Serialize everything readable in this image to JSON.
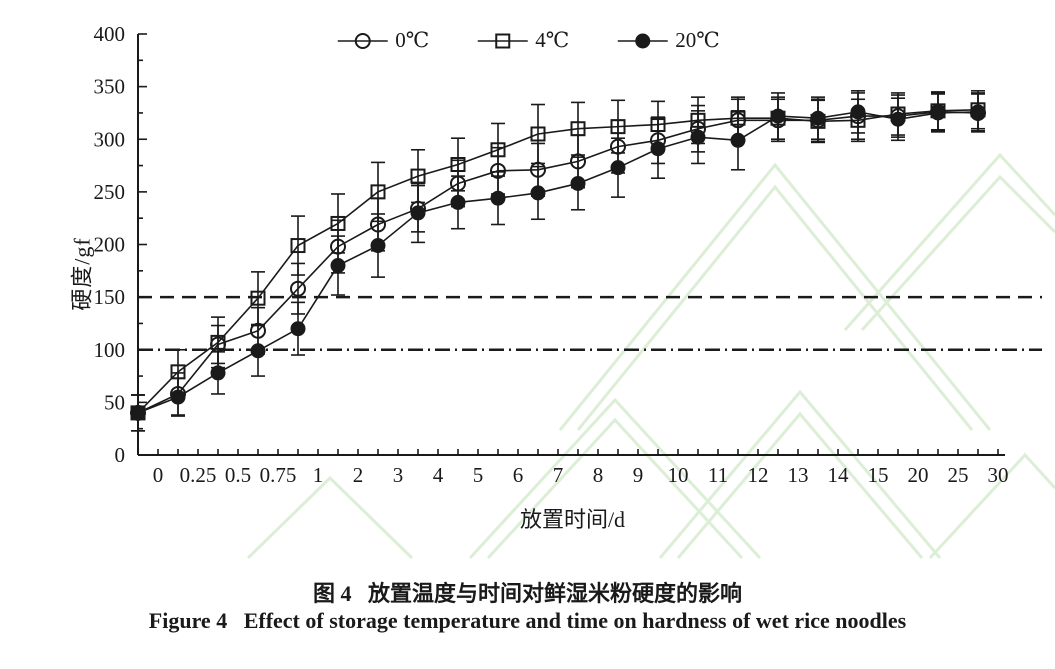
{
  "figure": {
    "caption_zh": "图 4   放置温度与时间对鲜湿米粉硬度的影响",
    "caption_en": "Figure 4   Effect of storage temperature and time on hardness of wet rice noodles"
  },
  "colors": {
    "ink": "#1a1a1a",
    "watermark_green": "#ddeed7"
  },
  "chart_data": {
    "type": "line",
    "title": "",
    "xlabel": "放置时间/d",
    "ylabel": "硬度/gf",
    "ylim": [
      0,
      400
    ],
    "ytick_step": 50,
    "yminor_step": 25,
    "grid": false,
    "legend_position": "top-center",
    "categories": [
      "0",
      "0.25",
      "0.5",
      "0.75",
      "1",
      "2",
      "3",
      "4",
      "5",
      "6",
      "7",
      "8",
      "9",
      "10",
      "11",
      "12",
      "13",
      "14",
      "15",
      "20",
      "25",
      "30"
    ],
    "reference_lines": [
      {
        "y": 150,
        "style": "dashed"
      },
      {
        "y": 100,
        "style": "dash-dot"
      }
    ],
    "series": [
      {
        "name": "0℃",
        "marker": "open-circle",
        "values": [
          40,
          58,
          105,
          118,
          158,
          198,
          219,
          234,
          258,
          270,
          271,
          279,
          293,
          299,
          310,
          318,
          318,
          318,
          322,
          322,
          326,
          325
        ],
        "errors": [
          17,
          20,
          18,
          22,
          24,
          25,
          25,
          22,
          22,
          22,
          25,
          25,
          25,
          22,
          22,
          20,
          20,
          20,
          22,
          20,
          18,
          18
        ]
      },
      {
        "name": "4℃",
        "marker": "open-square",
        "values": [
          40,
          79,
          107,
          149,
          199,
          220,
          250,
          265,
          276,
          290,
          305,
          310,
          312,
          314,
          318,
          320,
          320,
          317,
          318,
          324,
          327,
          328
        ],
        "errors": [
          17,
          21,
          24,
          25,
          28,
          28,
          28,
          25,
          25,
          25,
          28,
          25,
          25,
          22,
          22,
          20,
          20,
          20,
          20,
          20,
          18,
          18
        ]
      },
      {
        "name": "20℃",
        "marker": "filled-circle",
        "values": [
          40,
          55,
          78,
          99,
          120,
          180,
          199,
          230,
          240,
          244,
          249,
          258,
          273,
          291,
          302,
          299,
          322,
          320,
          326,
          319,
          325,
          326
        ],
        "errors": [
          17,
          18,
          20,
          24,
          25,
          28,
          30,
          28,
          25,
          25,
          25,
          25,
          28,
          28,
          25,
          28,
          22,
          20,
          20,
          20,
          18,
          18
        ]
      }
    ]
  }
}
